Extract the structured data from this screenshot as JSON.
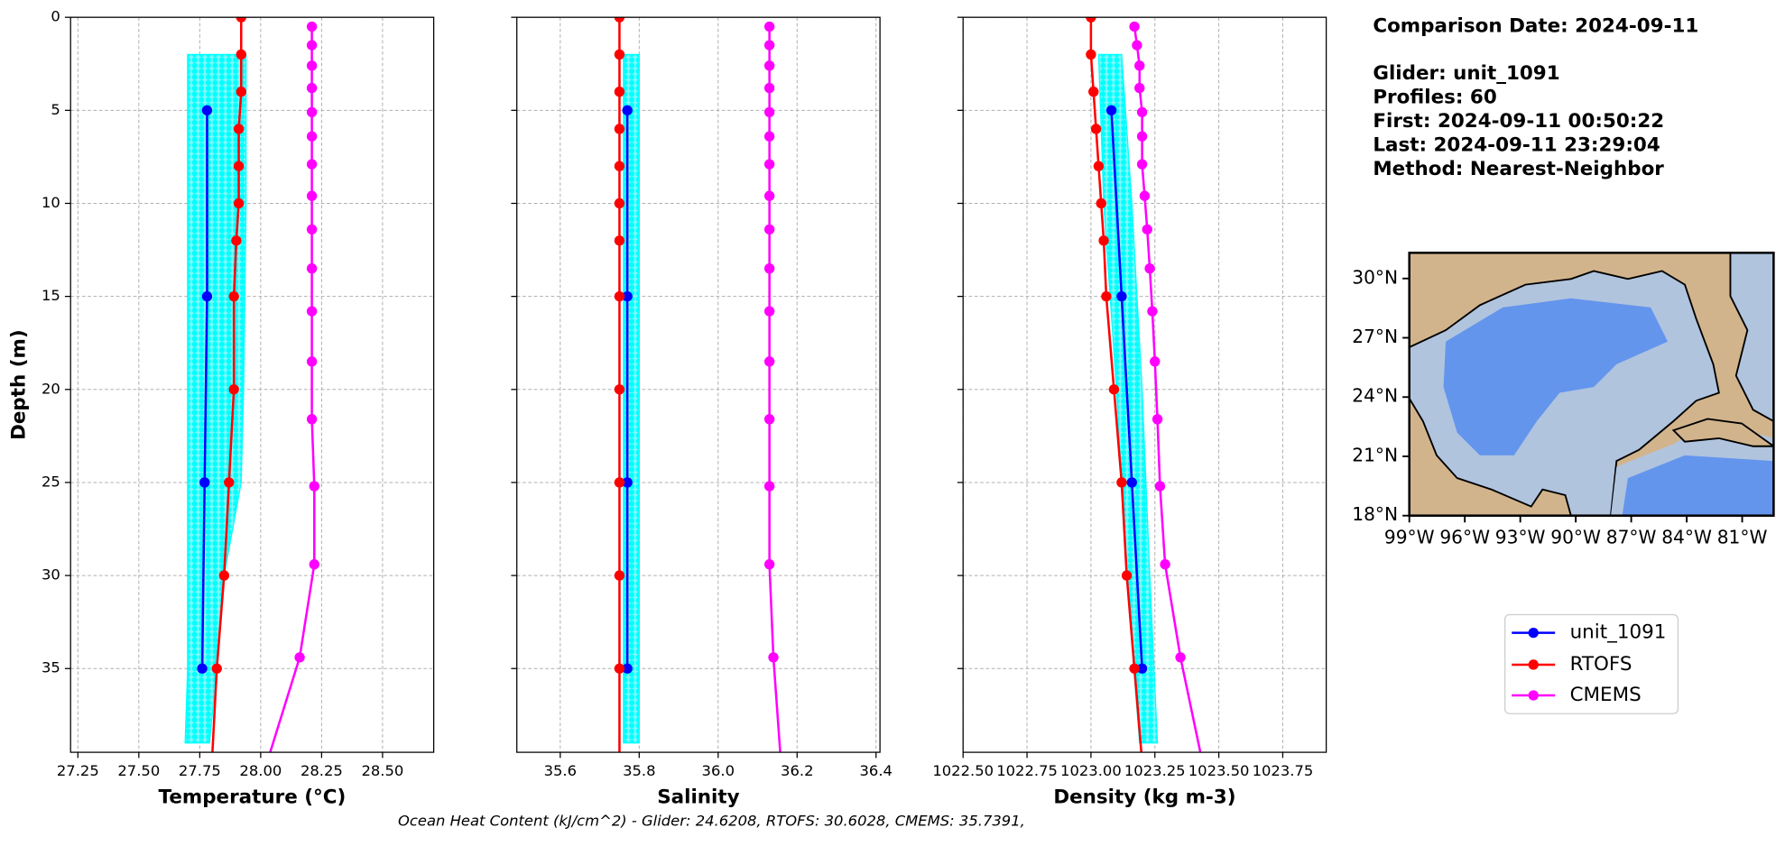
{
  "chart_data": [
    {
      "type": "line",
      "xlabel": "Temperature (°C)",
      "ylabel": "Depth (m)",
      "xlim": [
        27.22,
        28.71
      ],
      "xticks": [
        27.25,
        {
          "value": 27.5,
          "label": "27.50"
        },
        27.75,
        {
          "value": 28.0,
          "label": "28.00"
        },
        28.25,
        {
          "value": 28.5,
          "label": "28.50"
        }
      ],
      "ylim": [
        39.5,
        0
      ],
      "yticks": [
        0,
        5,
        10,
        15,
        20,
        25,
        30,
        35
      ],
      "ytick_labels": true,
      "grid": true,
      "profiles": {
        "color": "#00ffff",
        "depth": [
          2,
          10,
          20,
          25,
          30,
          35,
          39
        ],
        "min": [
          27.7,
          27.7,
          27.7,
          27.7,
          27.7,
          27.7,
          27.69
        ],
        "max": [
          27.94,
          27.94,
          27.93,
          27.92,
          27.85,
          27.82,
          27.79
        ]
      },
      "series": [
        {
          "name": "unit_1091",
          "color": "#0000ff",
          "depth": [
            5,
            15,
            25,
            35
          ],
          "values": [
            27.78,
            27.78,
            27.77,
            27.76
          ]
        },
        {
          "name": "RTOFS",
          "color": "#ff0000",
          "depth": [
            0,
            2,
            4,
            6,
            8,
            10,
            12,
            15,
            20,
            25,
            30,
            35,
            40
          ],
          "values": [
            27.92,
            27.92,
            27.92,
            27.91,
            27.91,
            27.91,
            27.9,
            27.89,
            27.89,
            27.87,
            27.85,
            27.82,
            27.8
          ]
        },
        {
          "name": "CMEMS",
          "color": "#ff00ff",
          "depth": [
            0.5,
            1.5,
            2.6,
            3.8,
            5.1,
            6.4,
            7.9,
            9.6,
            11.4,
            13.5,
            15.8,
            18.5,
            21.6,
            25.2,
            29.4,
            34.4,
            40.3
          ],
          "values": [
            28.21,
            28.21,
            28.21,
            28.21,
            28.21,
            28.21,
            28.21,
            28.21,
            28.21,
            28.21,
            28.21,
            28.21,
            28.21,
            28.22,
            28.22,
            28.16,
            28.02
          ]
        }
      ]
    },
    {
      "type": "line",
      "xlabel": "Salinity",
      "xlim": [
        35.49,
        36.41
      ],
      "xticks": [
        35.6,
        35.8,
        {
          "value": 36.0,
          "label": "36.0"
        },
        36.2,
        36.4
      ],
      "ylim": [
        39.5,
        0
      ],
      "yticks": [
        0,
        5,
        10,
        15,
        20,
        25,
        30,
        35
      ],
      "ytick_labels": false,
      "grid": true,
      "profiles": {
        "color": "#00ffff",
        "depth": [
          2,
          20,
          39
        ],
        "min": [
          35.76,
          35.76,
          35.76
        ],
        "max": [
          35.8,
          35.8,
          35.8
        ]
      },
      "series": [
        {
          "name": "unit_1091",
          "color": "#0000ff",
          "depth": [
            5,
            15,
            25,
            35
          ],
          "values": [
            35.77,
            35.77,
            35.77,
            35.77
          ]
        },
        {
          "name": "RTOFS",
          "color": "#ff0000",
          "depth": [
            0,
            2,
            4,
            6,
            8,
            10,
            12,
            15,
            20,
            25,
            30,
            35,
            40
          ],
          "values": [
            35.75,
            35.75,
            35.75,
            35.75,
            35.75,
            35.75,
            35.75,
            35.75,
            35.75,
            35.75,
            35.75,
            35.75,
            35.75
          ]
        },
        {
          "name": "CMEMS",
          "color": "#ff00ff",
          "depth": [
            0.5,
            1.5,
            2.6,
            3.8,
            5.1,
            6.4,
            7.9,
            9.6,
            11.4,
            13.5,
            15.8,
            18.5,
            21.6,
            25.2,
            29.4,
            34.4,
            40.3
          ],
          "values": [
            36.13,
            36.13,
            36.13,
            36.13,
            36.13,
            36.13,
            36.13,
            36.13,
            36.13,
            36.13,
            36.13,
            36.13,
            36.13,
            36.13,
            36.13,
            36.14,
            36.16
          ]
        }
      ]
    },
    {
      "type": "line",
      "xlabel": "Density (kg m-3)",
      "xlim": [
        1022.5,
        1023.92
      ],
      "xticks": [
        {
          "value": 1022.5,
          "label": "1022.50"
        },
        1022.75,
        {
          "value": 1023.0,
          "label": "1023.00"
        },
        1023.25,
        {
          "value": 1023.5,
          "label": "1023.50"
        },
        1023.75
      ],
      "ylim": [
        39.5,
        0
      ],
      "yticks": [
        0,
        5,
        10,
        15,
        20,
        25,
        30,
        35
      ],
      "ytick_labels": false,
      "grid": true,
      "profiles": {
        "color": "#00ffff",
        "depth": [
          2,
          10,
          20,
          30,
          39
        ],
        "min": [
          1023.03,
          1023.05,
          1023.1,
          1023.14,
          1023.19
        ],
        "max": [
          1023.12,
          1023.16,
          1023.2,
          1023.23,
          1023.26
        ]
      },
      "series": [
        {
          "name": "unit_1091",
          "color": "#0000ff",
          "depth": [
            5,
            15,
            25,
            35
          ],
          "values": [
            1023.08,
            1023.12,
            1023.16,
            1023.2
          ]
        },
        {
          "name": "RTOFS",
          "color": "#ff0000",
          "depth": [
            0,
            2,
            4,
            6,
            8,
            10,
            12,
            15,
            20,
            25,
            30,
            35,
            40
          ],
          "values": [
            1023.0,
            1023.0,
            1023.01,
            1023.02,
            1023.03,
            1023.04,
            1023.05,
            1023.06,
            1023.09,
            1023.12,
            1023.14,
            1023.17,
            1023.2
          ]
        },
        {
          "name": "CMEMS",
          "color": "#ff00ff",
          "depth": [
            0.5,
            1.5,
            2.6,
            3.8,
            5.1,
            6.4,
            7.9,
            9.6,
            11.4,
            13.5,
            15.8,
            18.5,
            21.6,
            25.2,
            29.4,
            34.4,
            40.3
          ],
          "values": [
            1023.17,
            1023.18,
            1023.19,
            1023.19,
            1023.2,
            1023.2,
            1023.2,
            1023.21,
            1023.22,
            1023.23,
            1023.24,
            1023.25,
            1023.26,
            1023.27,
            1023.29,
            1023.35,
            1023.44
          ]
        }
      ]
    }
  ],
  "info": [
    "Comparison Date: 2024-09-11",
    "Glider: unit_1091",
    "Profiles: 60",
    "First: 2024-09-11 00:50:22",
    "Last: 2024-09-11 23:29:04",
    "Method: Nearest-Neighbor"
  ],
  "map": {
    "xlim": [
      -99,
      -79.3
    ],
    "ylim": [
      18,
      31.3
    ],
    "lat_ticks": [
      {
        "value": 30,
        "label": "30°N"
      },
      {
        "value": 27,
        "label": "27°N"
      },
      {
        "value": 24,
        "label": "24°N"
      },
      {
        "value": 21,
        "label": "21°N"
      },
      {
        "value": 18,
        "label": "18°N"
      }
    ],
    "lon_ticks": [
      {
        "value": -99,
        "label": "99°W"
      },
      {
        "value": -96,
        "label": "96°W"
      },
      {
        "value": -93,
        "label": "93°W"
      },
      {
        "value": -90,
        "label": "90°W"
      },
      {
        "value": -87,
        "label": "87°W"
      },
      {
        "value": -84,
        "label": "84°W"
      },
      {
        "value": -81,
        "label": "81°W"
      }
    ]
  },
  "caption": "Ocean Heat Content (kJ/cm^2) - Glider: 24.6208,  RTOFS: 30.6028,  CMEMS: 35.7391,"
}
